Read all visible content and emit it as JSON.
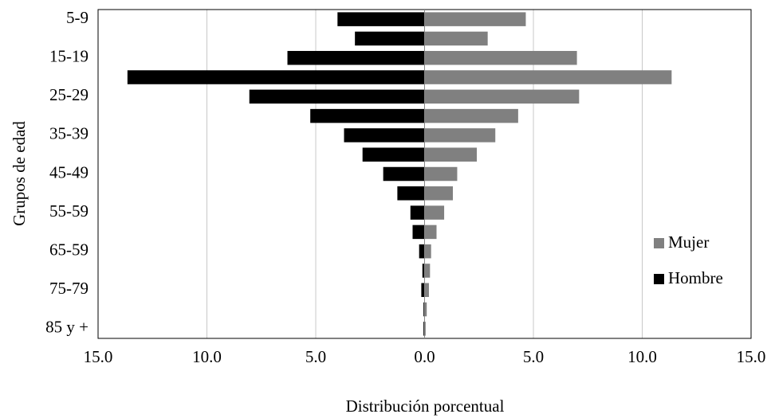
{
  "chart_data": {
    "type": "pyramid",
    "x_label": "Distribución porcentual",
    "y_label": "Grupos de edad",
    "categories": [
      "5-9",
      null,
      "15-19",
      null,
      "25-29",
      null,
      "35-39",
      null,
      "45-49",
      null,
      "55-59",
      null,
      "65-59",
      null,
      "75-79",
      null,
      "85 y +"
    ],
    "series": [
      {
        "name": "Mujer",
        "color": "#808080",
        "values": [
          4.65,
          2.9,
          7.0,
          11.35,
          7.1,
          4.3,
          3.25,
          2.4,
          1.5,
          1.3,
          0.9,
          0.55,
          0.3,
          0.25,
          0.2,
          0.1,
          0.05
        ]
      },
      {
        "name": "Hombre",
        "color": "#000000",
        "values": [
          -4.0,
          -3.2,
          -6.3,
          -13.65,
          -8.05,
          -5.25,
          -3.7,
          -2.85,
          -1.9,
          -1.25,
          -0.65,
          -0.55,
          -0.25,
          -0.1,
          -0.15,
          -0.05,
          -0.05
        ]
      }
    ],
    "xlim": [
      -15,
      15
    ],
    "xticks": [
      {
        "value": -15,
        "label": "15.0"
      },
      {
        "value": -10,
        "label": "10.0"
      },
      {
        "value": -5,
        "label": "5.0"
      },
      {
        "value": 0,
        "label": "0.0"
      },
      {
        "value": 5,
        "label": "5.0"
      },
      {
        "value": 10,
        "label": "10.0"
      },
      {
        "value": 15,
        "label": "15.0"
      }
    ],
    "grid": true,
    "legend": "right"
  }
}
